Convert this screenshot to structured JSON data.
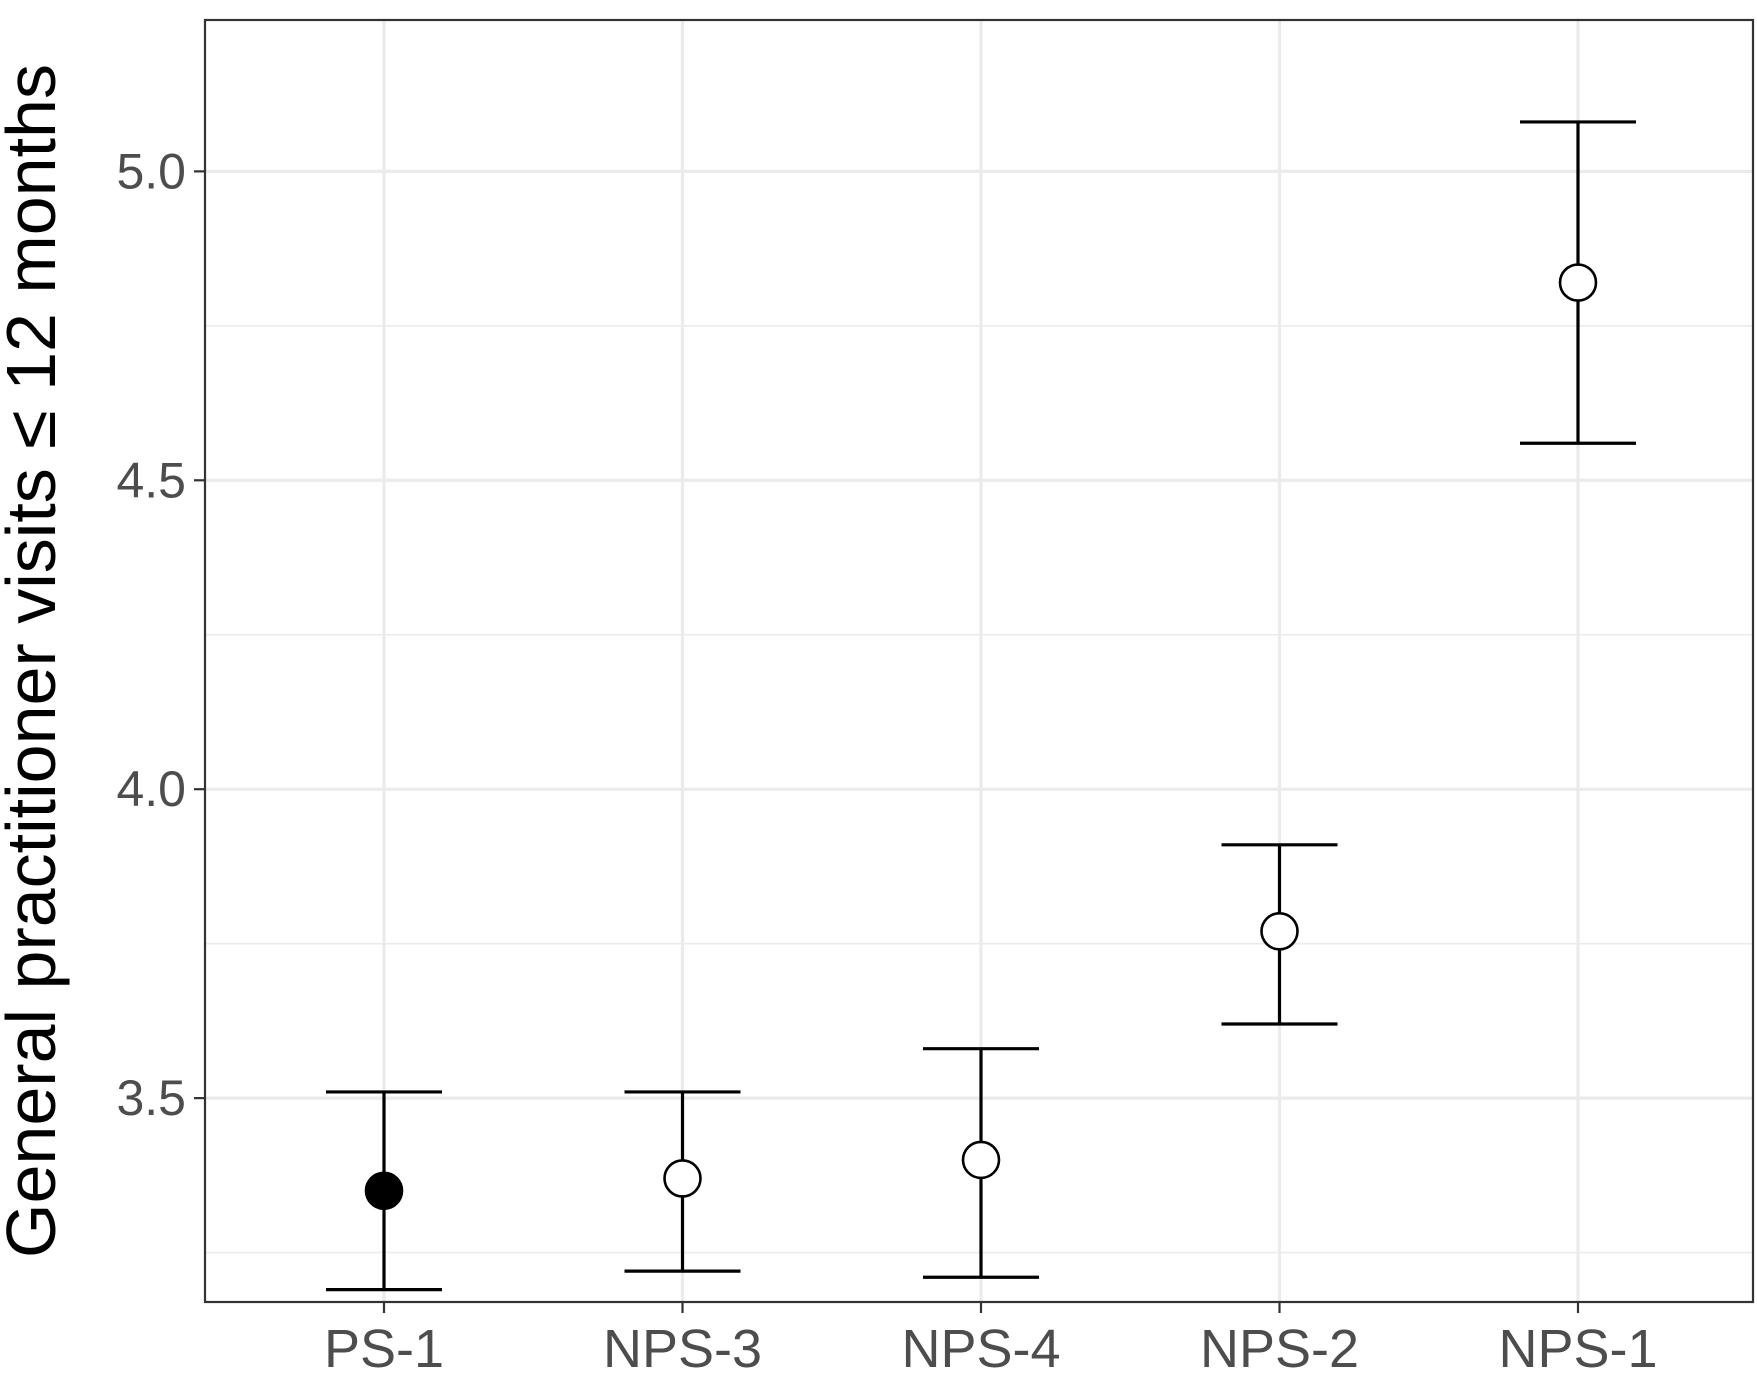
{
  "chart_data": {
    "type": "scatter",
    "subtype": "point-with-error-bars",
    "title": "",
    "xlabel": "",
    "ylabel": "General practitioner visits ≤ 12 months",
    "categories": [
      "PS-1",
      "NPS-3",
      "NPS-4",
      "NPS-2",
      "NPS-1"
    ],
    "points": [
      {
        "category": "PS-1",
        "estimate": 3.35,
        "lower": 3.19,
        "upper": 3.51,
        "filled": true
      },
      {
        "category": "NPS-3",
        "estimate": 3.37,
        "lower": 3.22,
        "upper": 3.51,
        "filled": false
      },
      {
        "category": "NPS-4",
        "estimate": 3.4,
        "lower": 3.21,
        "upper": 3.58,
        "filled": false
      },
      {
        "category": "NPS-2",
        "estimate": 3.77,
        "lower": 3.62,
        "upper": 3.91,
        "filled": false
      },
      {
        "category": "NPS-1",
        "estimate": 4.82,
        "lower": 4.56,
        "upper": 5.08,
        "filled": false
      }
    ],
    "ylim": [
      3.17,
      5.245
    ],
    "y_ticks": [
      3.5,
      4.0,
      4.5,
      5.0
    ],
    "y_tick_labels": [
      "3.5",
      "4.0",
      "4.5",
      "5.0"
    ],
    "y_minor_ticks": [
      3.25,
      3.75,
      4.25,
      4.75
    ],
    "grid": true,
    "legend": "none",
    "colors": {
      "marker": "#000000",
      "grid": "#ebebeb",
      "panel_border": "#333333",
      "tick_text": "#4d4d4d"
    }
  }
}
